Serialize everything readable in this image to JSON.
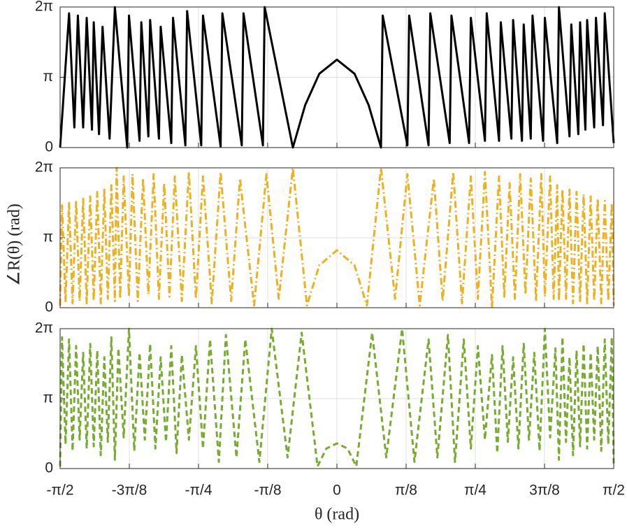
{
  "chart_data": [
    {
      "type": "line",
      "xlim": [
        -1.5708,
        1.5708
      ],
      "ylim": [
        0,
        6.2832
      ],
      "xticks": [
        -1.5708,
        -1.1781,
        -0.7854,
        -0.3927,
        0,
        0.3927,
        0.7854,
        1.1781,
        1.5708
      ],
      "yticks": [
        0,
        {
          "value": 3.1416,
          "label": "π"
        },
        {
          "value": 6.2832,
          "label": "2π"
        }
      ],
      "grid": true,
      "x": [
        -1.5708,
        -1.52,
        -1.49,
        -1.47,
        -1.44,
        -1.42,
        -1.39,
        -1.38,
        -1.35,
        -1.33,
        -1.29,
        -1.26,
        -1.19,
        -1.18,
        -1.12,
        -1.11,
        -1.07,
        -1.06,
        -1.01,
        -1.0,
        -0.94,
        -0.93,
        -0.86,
        -0.85,
        -0.77,
        -0.76,
        -0.66,
        -0.65,
        -0.54,
        -0.53,
        -0.42,
        -0.41,
        -0.25,
        -0.18,
        -0.1,
        0,
        0.1,
        0.18,
        0.25,
        0.26,
        0.4,
        0.41,
        0.52,
        0.53,
        0.64,
        0.65,
        0.75,
        0.76,
        0.84,
        0.85,
        0.92,
        0.93,
        0.99,
        1.0,
        1.05,
        1.06,
        1.1,
        1.11,
        1.17,
        1.18,
        1.25,
        1.26,
        1.32,
        1.33,
        1.37,
        1.38,
        1.41,
        1.42,
        1.46,
        1.47,
        1.51,
        1.52,
        1.5708
      ],
      "series": [
        {
          "color": "#000000",
          "dash": "solid",
          "values": [
            0,
            6.0,
            0.9,
            5.9,
            0.9,
            5.8,
            0.8,
            5.6,
            0.6,
            5.4,
            0.4,
            6.28,
            0,
            5.9,
            0.3,
            5.6,
            0.5,
            5.7,
            0.4,
            5.4,
            0.2,
            5.8,
            0.1,
            6.1,
            0.1,
            5.9,
            0.05,
            6.0,
            0.1,
            6.0,
            0.1,
            6.28,
            0,
            1.9,
            3.3,
            3.93,
            3.3,
            1.9,
            0,
            5.9,
            0.1,
            5.9,
            0.1,
            6.0,
            0.2,
            5.9,
            0.2,
            5.8,
            0.3,
            6.0,
            0.3,
            5.6,
            0.4,
            5.7,
            0.3,
            5.5,
            0.4,
            5.9,
            0.3,
            5.8,
            0.2,
            6.28,
            0.5,
            5.5,
            0.6,
            5.6,
            0.8,
            5.7,
            0.9,
            5.8,
            1.0,
            6.0,
            0.2
          ]
        }
      ]
    },
    {
      "type": "line",
      "ylabel": "∠R(θ) (rad)",
      "xlim": [
        -1.5708,
        1.5708
      ],
      "ylim": [
        0,
        6.2832
      ],
      "xticks": [
        -1.5708,
        -1.1781,
        -0.7854,
        -0.3927,
        0,
        0.3927,
        0.7854,
        1.1781,
        1.5708
      ],
      "yticks": [
        0,
        {
          "value": 3.1416,
          "label": "π"
        },
        {
          "value": 6.2832,
          "label": "2π"
        }
      ],
      "grid": true,
      "x": [
        -1.5708,
        -1.56,
        -1.54,
        -1.52,
        -1.5,
        -1.48,
        -1.46,
        -1.44,
        -1.42,
        -1.4,
        -1.38,
        -1.36,
        -1.34,
        -1.32,
        -1.3,
        -1.28,
        -1.26,
        -1.25,
        -1.23,
        -1.21,
        -1.18,
        -1.16,
        -1.13,
        -1.1,
        -1.07,
        -1.04,
        -1.01,
        -0.98,
        -0.95,
        -0.92,
        -0.88,
        -0.84,
        -0.8,
        -0.76,
        -0.71,
        -0.66,
        -0.6,
        -0.55,
        -0.47,
        -0.4,
        -0.33,
        -0.25,
        -0.17,
        -0.1,
        0,
        0.1,
        0.17,
        0.25,
        0.33,
        0.4,
        0.47,
        0.55,
        0.6,
        0.66,
        0.71,
        0.76,
        0.8,
        0.84,
        0.88,
        0.92,
        0.95,
        0.98,
        1.01,
        1.04,
        1.07,
        1.1,
        1.13,
        1.16,
        1.18,
        1.21,
        1.23,
        1.25,
        1.26,
        1.28,
        1.3,
        1.32,
        1.34,
        1.36,
        1.38,
        1.4,
        1.42,
        1.44,
        1.46,
        1.48,
        1.5,
        1.52,
        1.54,
        1.56,
        1.5708
      ],
      "series": [
        {
          "color": "#EDB120",
          "dash": "dashdot",
          "values": [
            0.1,
            4.6,
            0.3,
            4.7,
            0.2,
            4.8,
            0.3,
            4.9,
            0.2,
            5.0,
            0.3,
            5.2,
            0.2,
            5.3,
            0.4,
            5.5,
            0.3,
            6.28,
            0.4,
            5.9,
            0.5,
            6.0,
            0.3,
            5.8,
            0.6,
            6.0,
            0.4,
            5.6,
            0.5,
            5.9,
            0.3,
            6.1,
            0.4,
            5.9,
            0.2,
            6.1,
            0.3,
            5.8,
            0.1,
            6.0,
            0.4,
            6.28,
            0.1,
            1.9,
            2.58,
            1.9,
            0.1,
            6.28,
            0.4,
            6.0,
            0.1,
            5.8,
            0.3,
            6.1,
            0.2,
            5.9,
            0.4,
            6.1,
            0.0,
            5.9,
            0.5,
            5.6,
            0.4,
            6.0,
            0.6,
            5.8,
            0.3,
            6.0,
            0.5,
            5.9,
            0.4,
            5.5,
            0.3,
            5.3,
            0.4,
            5.3,
            0.2,
            5.2,
            0.3,
            5.1,
            0.2,
            5.0,
            0.3,
            4.9,
            0.2,
            4.8,
            0.3,
            4.7,
            0.1
          ]
        }
      ]
    },
    {
      "type": "line",
      "xlabel": "θ (rad)",
      "xlim": [
        -1.5708,
        1.5708
      ],
      "ylim": [
        0,
        6.2832
      ],
      "xticks": [
        {
          "value": -1.5708,
          "label": "-π/2"
        },
        {
          "value": -1.1781,
          "label": "-3π/8"
        },
        {
          "value": -0.7854,
          "label": "-π/4"
        },
        {
          "value": -0.3927,
          "label": "-π/8"
        },
        0,
        {
          "value": 0.3927,
          "label": "π/8"
        },
        {
          "value": 0.7854,
          "label": "π/4"
        },
        {
          "value": 1.1781,
          "label": "3π/8"
        },
        {
          "value": 1.5708,
          "label": "π/2"
        }
      ],
      "yticks": [
        0,
        {
          "value": 3.1416,
          "label": "π"
        },
        {
          "value": 6.2832,
          "label": "2π"
        }
      ],
      "grid": true,
      "x": [
        -1.5708,
        -1.56,
        -1.54,
        -1.52,
        -1.5,
        -1.48,
        -1.46,
        -1.44,
        -1.42,
        -1.4,
        -1.38,
        -1.36,
        -1.34,
        -1.32,
        -1.3,
        -1.28,
        -1.26,
        -1.24,
        -1.21,
        -1.18,
        -1.15,
        -1.12,
        -1.09,
        -1.06,
        -1.03,
        -1.0,
        -0.97,
        -0.94,
        -0.91,
        -0.88,
        -0.84,
        -0.8,
        -0.76,
        -0.72,
        -0.67,
        -0.63,
        -0.57,
        -0.52,
        -0.44,
        -0.37,
        -0.28,
        -0.2,
        -0.11,
        -0.06,
        0,
        0.06,
        0.11,
        0.2,
        0.28,
        0.37,
        0.44,
        0.52,
        0.57,
        0.63,
        0.67,
        0.72,
        0.76,
        0.8,
        0.84,
        0.88,
        0.91,
        0.94,
        0.97,
        1.0,
        1.03,
        1.06,
        1.09,
        1.12,
        1.15,
        1.18,
        1.21,
        1.24,
        1.26,
        1.28,
        1.3,
        1.32,
        1.34,
        1.36,
        1.38,
        1.4,
        1.42,
        1.44,
        1.46,
        1.48,
        1.5,
        1.52,
        1.54,
        1.56,
        1.5708
      ],
      "series": [
        {
          "color": "#77AC30",
          "dash": "dashed",
          "values": [
            0.1,
            5.9,
            1.1,
            5.8,
            0.8,
            5.5,
            1.3,
            5.2,
            0.9,
            5.6,
            1.0,
            5.3,
            0.6,
            5.0,
            1.2,
            5.9,
            0.4,
            5.4,
            1.4,
            6.28,
            0.8,
            5.2,
            1.3,
            5.6,
            0.9,
            5.0,
            1.2,
            5.5,
            0.7,
            5.1,
            1.3,
            5.5,
            0.9,
            5.8,
            0.3,
            6.0,
            0.5,
            5.8,
            0.3,
            6.28,
            0.5,
            6.1,
            0.1,
            0.9,
            1.13,
            0.9,
            0.1,
            6.1,
            0.5,
            6.28,
            0.3,
            5.8,
            0.5,
            6.0,
            0.3,
            5.8,
            0.9,
            5.5,
            1.3,
            5.1,
            0.7,
            5.5,
            1.2,
            5.0,
            0.9,
            5.6,
            1.3,
            5.2,
            0.8,
            6.28,
            1.4,
            5.4,
            0.4,
            5.9,
            1.2,
            5.0,
            0.6,
            5.3,
            1.0,
            5.6,
            0.9,
            5.2,
            1.3,
            5.5,
            0.8,
            5.8,
            1.1,
            5.9,
            0.1
          ]
        }
      ]
    }
  ]
}
